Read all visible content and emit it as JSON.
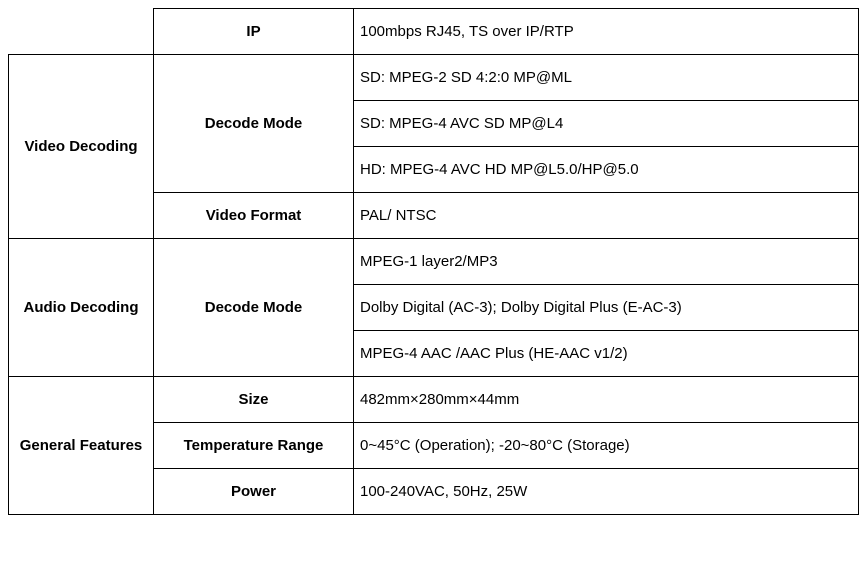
{
  "rows": {
    "ip": {
      "col1": "",
      "col2": "IP",
      "col3": "100mbps RJ45, TS over IP/RTP"
    },
    "video_decoding": {
      "category": "Video Decoding",
      "decode_mode_label": "Decode Mode",
      "decode_modes": [
        "SD: MPEG-2 SD 4:2:0 MP@ML",
        "SD: MPEG-4 AVC SD MP@L4",
        "HD: MPEG-4 AVC HD MP@L5.0/HP@5.0"
      ],
      "video_format_label": "Video Format",
      "video_format_value": "PAL/ NTSC"
    },
    "audio_decoding": {
      "category": "Audio Decoding",
      "decode_mode_label": "Decode Mode",
      "decode_modes": [
        "MPEG-1 layer2/MP3",
        "Dolby Digital (AC-3); Dolby Digital Plus (E-AC-3)",
        "MPEG-4 AAC /AAC Plus (HE-AAC v1/2)"
      ]
    },
    "general_features": {
      "category": "General Features",
      "size_label": "Size",
      "size_value": "482mm×280mm×44mm",
      "temp_label": "Temperature Range",
      "temp_value": "0~45°C (Operation); -20~80°C (Storage)",
      "power_label": "Power",
      "power_value": "100-240VAC, 50Hz, 25W"
    }
  },
  "styles": {
    "border_color": "#000000",
    "background_color": "#ffffff",
    "text_color": "#000000",
    "font_family": "Arial",
    "col1_width": 145,
    "col2_width": 200,
    "col3_width": 505
  }
}
